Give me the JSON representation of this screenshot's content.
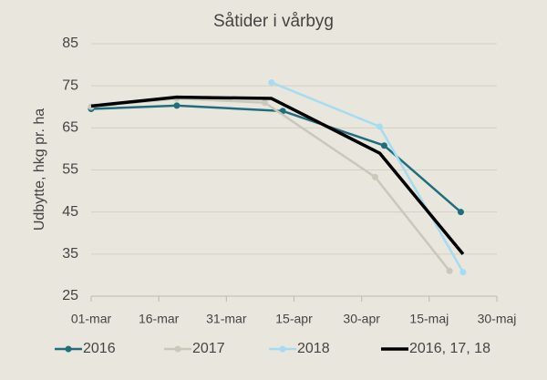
{
  "chart_data": {
    "type": "line",
    "title": "Såtider i vårbyg",
    "y_label": "Udbytte, hkg pr. ha",
    "xlim": [
      0,
      90
    ],
    "xticks": [
      {
        "value": 0,
        "label": "01-mar"
      },
      {
        "value": 15,
        "label": "16-mar"
      },
      {
        "value": 30,
        "label": "31-mar"
      },
      {
        "value": 45,
        "label": "15-apr"
      },
      {
        "value": 60,
        "label": "30-apr"
      },
      {
        "value": 75,
        "label": "15-maj"
      },
      {
        "value": 90,
        "label": "30-maj"
      }
    ],
    "ylim": [
      25,
      85
    ],
    "yticks": [
      25,
      35,
      45,
      55,
      65,
      75,
      85
    ],
    "grid": true,
    "series": [
      {
        "name": "2016",
        "color": "#1f6e7e",
        "marker": true,
        "x": [
          0,
          19,
          42.5,
          65,
          82
        ],
        "values": [
          69.5,
          70.3,
          69,
          60.8,
          45
        ]
      },
      {
        "name": "2017",
        "color": "#c9c8bb",
        "marker": true,
        "x": [
          0,
          19,
          38.5,
          63,
          79.5
        ],
        "values": [
          70,
          72,
          71,
          53.3,
          31
        ]
      },
      {
        "name": "2018",
        "color": "#a6dcf2",
        "marker": true,
        "x": [
          40,
          64,
          82.5
        ],
        "values": [
          75.8,
          65.3,
          30.7
        ]
      },
      {
        "name": "2016, 17, 18",
        "color": "#000000",
        "marker": false,
        "x": [
          0,
          19,
          40,
          64,
          82.5
        ],
        "values": [
          70.2,
          72.3,
          72,
          59,
          35
        ]
      }
    ]
  }
}
